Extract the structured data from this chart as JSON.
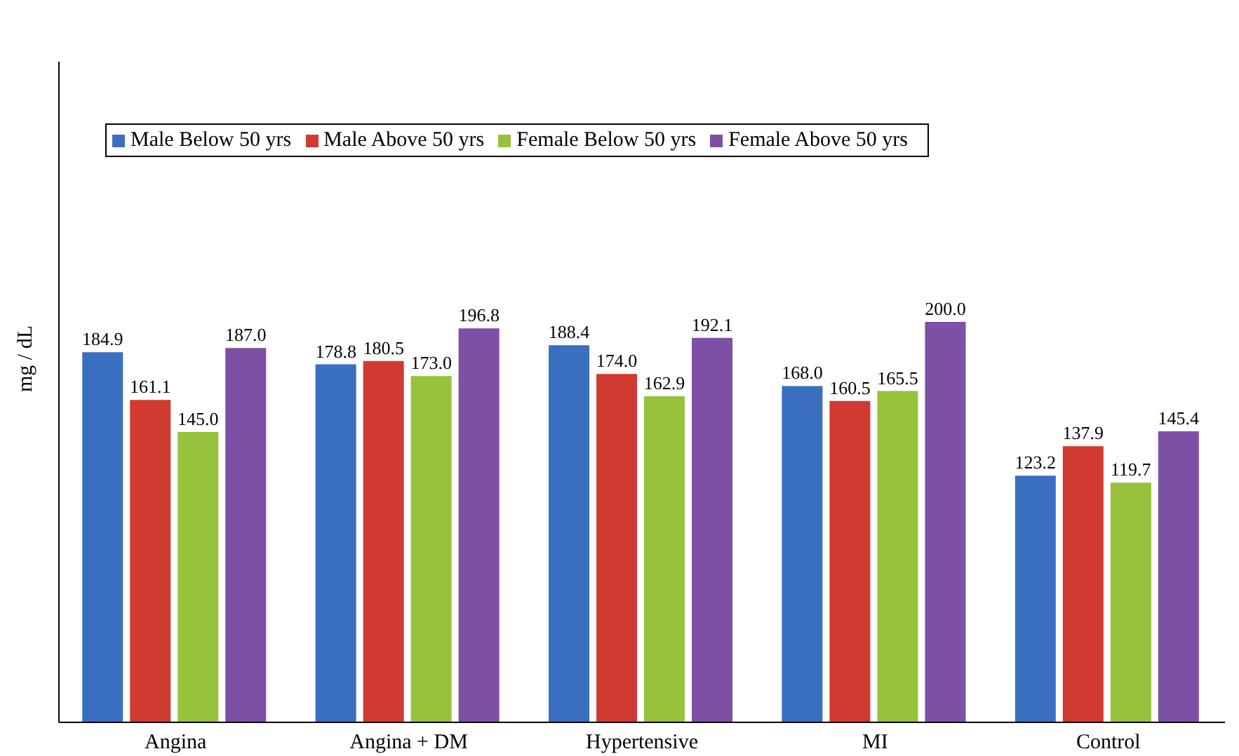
{
  "chart_data": {
    "type": "bar",
    "ylabel": "mg / dL",
    "categories": [
      "Angina",
      "Angina + DM",
      "Hypertensive",
      "MI",
      "Control"
    ],
    "series": [
      {
        "name": "Male Below 50 yrs",
        "color": "#3a6fbf",
        "values": [
          184.9,
          178.8,
          188.4,
          168.0,
          123.2
        ],
        "value_labels": [
          "184.9",
          "178.8",
          "188.4",
          "168.0",
          "123.2"
        ]
      },
      {
        "name": "Male Above 50 yrs",
        "color": "#d03a30",
        "values": [
          161.1,
          180.5,
          174.0,
          160.5,
          137.9
        ],
        "value_labels": [
          "161.1",
          "180.5",
          "174.0",
          "160.5",
          "137.9"
        ]
      },
      {
        "name": "Female Below 50 yrs",
        "color": "#96c23c",
        "values": [
          145.0,
          173.0,
          162.9,
          165.5,
          119.7
        ],
        "value_labels": [
          "145.0",
          "173.0",
          "162.9",
          "165.5",
          "119.7"
        ]
      },
      {
        "name": "Female Above 50 yrs",
        "color": "#7d4fa5",
        "values": [
          187.0,
          196.8,
          192.1,
          200.0,
          145.4
        ],
        "value_labels": [
          "187.0",
          "196.8",
          "192.1",
          "200.0",
          "145.4"
        ]
      }
    ],
    "ylim": [
      0,
      330
    ],
    "tick_labels": "x",
    "grid": false,
    "legend": "top"
  }
}
